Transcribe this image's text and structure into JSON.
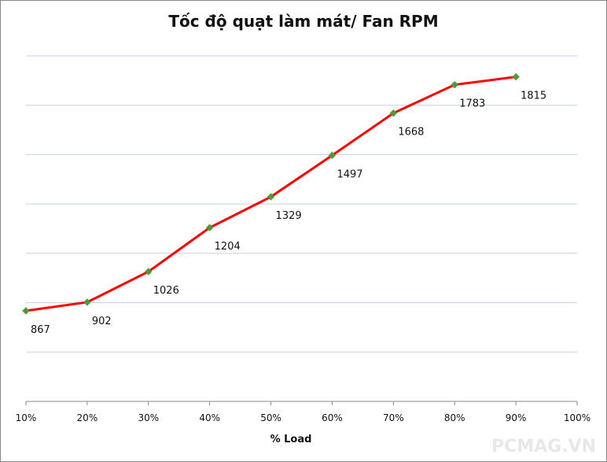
{
  "chart_data": {
    "type": "line",
    "title": "Tốc độ quạt làm mát/ Fan RPM",
    "x_label": "% Load",
    "categories": [
      "10%",
      "20%",
      "30%",
      "40%",
      "50%",
      "60%",
      "70%",
      "80%",
      "90%",
      "100%"
    ],
    "series": [
      {
        "name": "Fan RPM",
        "color": "#ff0000",
        "marker_color": "#4e9a3a",
        "values": [
          867,
          902,
          1026,
          1204,
          1329,
          1497,
          1668,
          1783,
          1815,
          null
        ]
      }
    ],
    "ylim": [
      500,
      1900
    ],
    "yticks": [
      500,
      700,
      900,
      1100,
      1300,
      1500,
      1700,
      1900
    ],
    "grid": true,
    "watermark": "PCMAG.VN"
  }
}
